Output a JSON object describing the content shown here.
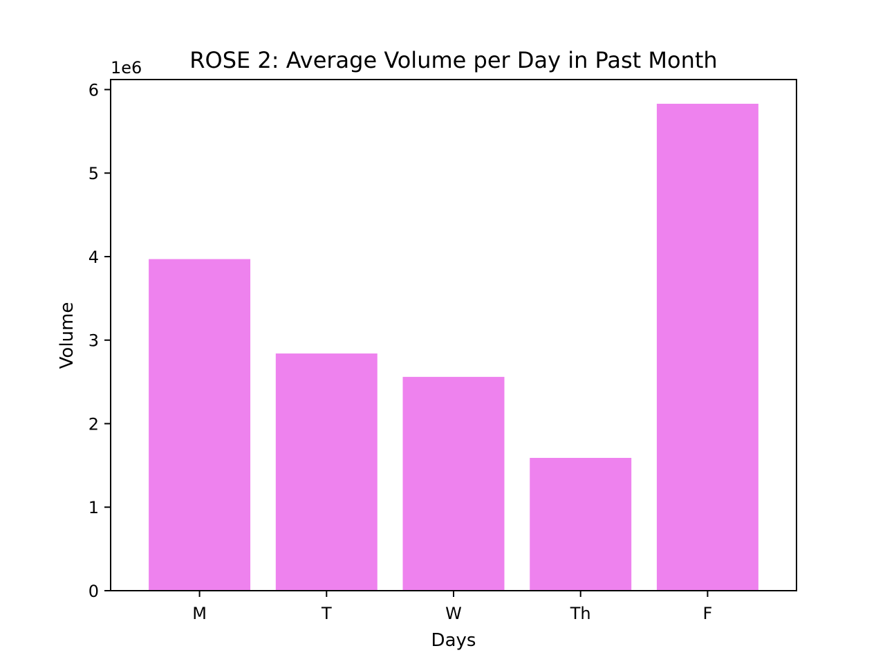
{
  "chart_data": {
    "type": "bar",
    "title": "ROSE 2: Average Volume per Day in Past Month",
    "xlabel": "Days",
    "ylabel": "Volume",
    "y_offset_label": "1e6",
    "categories": [
      "M",
      "T",
      "W",
      "Th",
      "F"
    ],
    "values": [
      3970000,
      2840000,
      2560000,
      1590000,
      5830000
    ],
    "ylim": [
      0,
      6120000
    ],
    "yticks": [
      0,
      1000000,
      2000000,
      3000000,
      4000000,
      5000000,
      6000000
    ],
    "ytick_labels": [
      "0",
      "1",
      "2",
      "3",
      "4",
      "5",
      "6"
    ],
    "bar_color": "#ee82ee",
    "grid": false,
    "legend": "none"
  }
}
